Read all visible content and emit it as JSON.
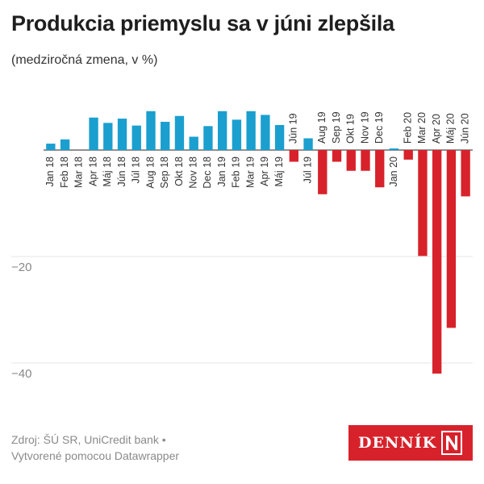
{
  "header": {
    "title": "Produkcia priemyslu sa v júni zlepšila",
    "subtitle": "(medziročná zmena, v %)"
  },
  "footer": {
    "source": "Zdroj: ŠÚ SR, UniCredit bank •",
    "credit": "Vytvorené pomocou Datawrapper"
  },
  "logo": {
    "text": "DENNÍK",
    "mark": "N"
  },
  "colors": {
    "positive": "#1a9fcf",
    "negative": "#d8222b",
    "grid": "#e6e6e6"
  },
  "chart_data": {
    "type": "bar",
    "title": "Produkcia priemyslu sa v júni zlepšila",
    "subtitle": "(medziročná zmena, v %)",
    "categories": [
      "Jan 18",
      "Feb 18",
      "Mar 18",
      "Apr 18",
      "Máj 18",
      "Jún 18",
      "Júl 18",
      "Aug 18",
      "Sep 18",
      "Okt 18",
      "Nov 18",
      "Dec 18",
      "Jan 19",
      "Feb 19",
      "Mar 19",
      "Apr 19",
      "Máj 19",
      "Jún 19",
      "Júl 19",
      "Aug 19",
      "Sep 19",
      "Okt 19",
      "Nov 19",
      "Dec 19",
      "Jan 20",
      "Feb 20",
      "Mar 20",
      "Apr 20",
      "Máj 20",
      "Jún 20"
    ],
    "values": [
      1.2,
      2.0,
      0.0,
      6.1,
      5.1,
      5.9,
      4.6,
      7.3,
      5.3,
      6.4,
      2.5,
      4.5,
      7.3,
      5.7,
      7.3,
      6.6,
      4.7,
      -2.2,
      2.2,
      -8.3,
      -2.2,
      -3.9,
      -3.9,
      -7.0,
      0.3,
      -1.8,
      -19.9,
      -42.0,
      -33.4,
      -8.7
    ],
    "ylim": [
      -45,
      10
    ],
    "yticks": [
      -20,
      -40
    ],
    "ytick_labels": [
      "−20",
      "−40"
    ],
    "grid": true,
    "xlabel": "",
    "ylabel": ""
  }
}
